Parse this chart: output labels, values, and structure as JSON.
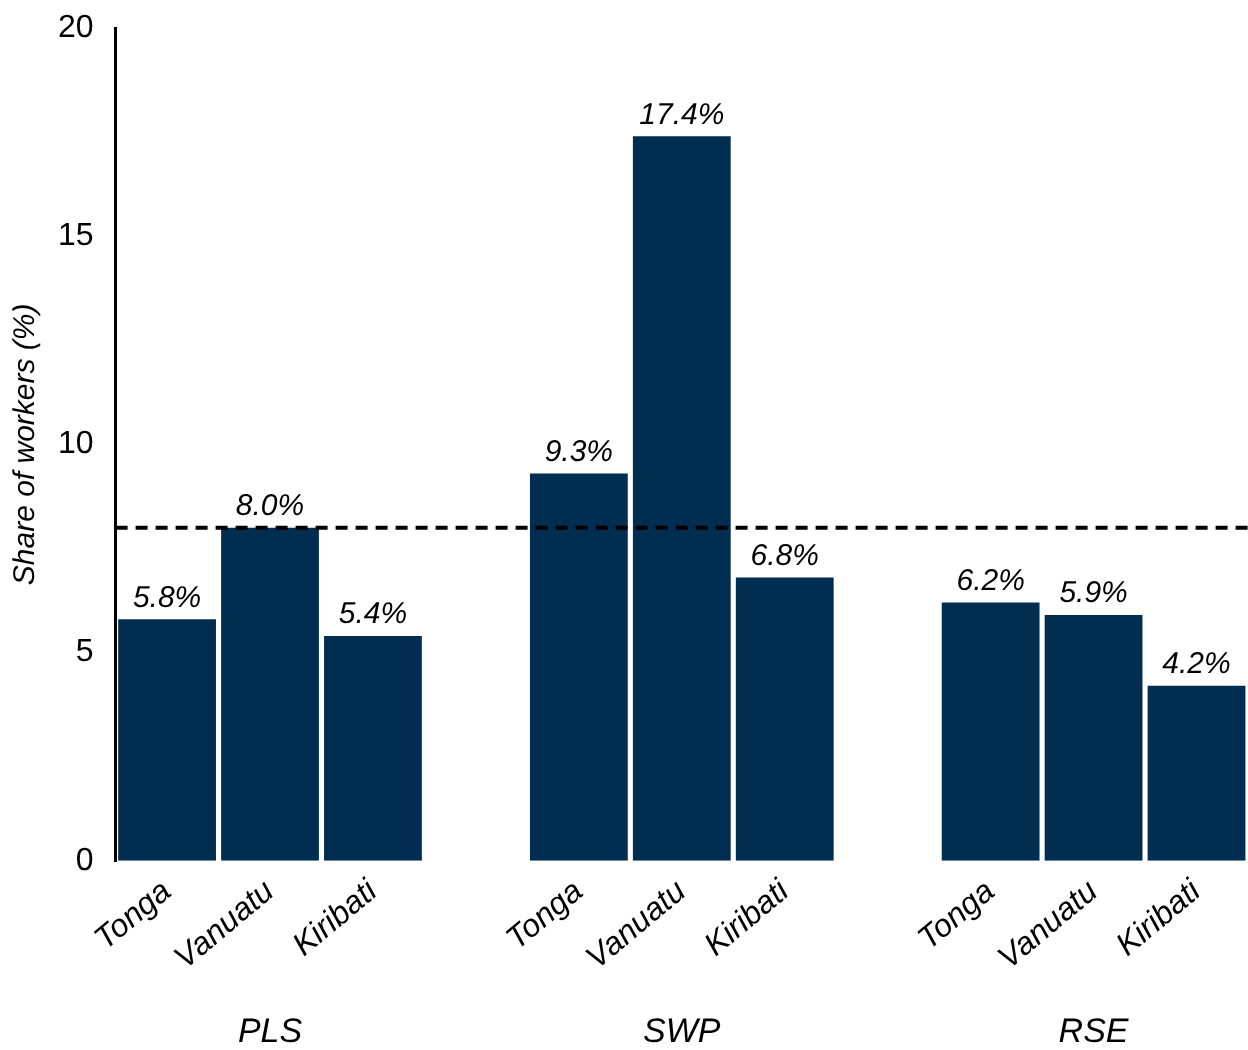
{
  "chart_data": {
    "type": "bar",
    "ylabel": "Share of workers (%)",
    "categories": [
      "Tonga",
      "Vanuatu",
      "Kiribati",
      null,
      "Tonga",
      "Vanuatu",
      "Kiribati",
      null,
      "Tonga",
      "Vanuatu",
      "Kiribati"
    ],
    "values": [
      5.8,
      8.0,
      5.4,
      null,
      9.3,
      17.4,
      6.8,
      null,
      6.2,
      5.9,
      4.2
    ],
    "value_labels": [
      "5.8%",
      "8.0%",
      "5.4%",
      null,
      "9.3%",
      "17.4%",
      "6.8%",
      null,
      "6.2%",
      "5.9%",
      "4.2%"
    ],
    "color": "#002d50",
    "ylim": [
      0,
      20
    ],
    "yticks": [
      0,
      5,
      10,
      15,
      20
    ],
    "grid": false,
    "legend": false,
    "ref_lines": [
      {
        "axis": "y",
        "value": 8.0,
        "color": "#000000",
        "line_style": "dashed"
      }
    ],
    "annotations": [
      "PLS",
      "SWP",
      "RSE"
    ]
  }
}
